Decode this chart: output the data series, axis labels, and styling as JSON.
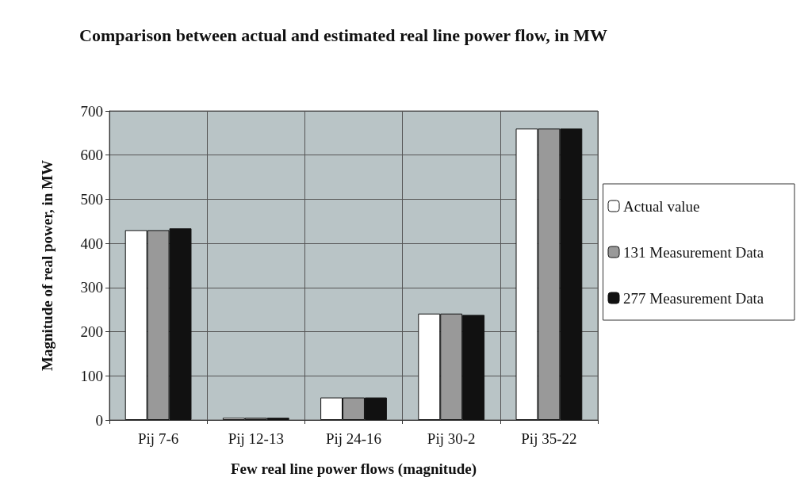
{
  "chart_data": {
    "type": "bar",
    "title": "Comparison between actual and estimated real line power flow, in MW",
    "xlabel": "Few real line power flows (magnitude)",
    "ylabel": "Magnitude of real power, in MW",
    "categories": [
      "Pij 7-6",
      "Pij 12-13",
      "Pij 24-16",
      "Pij 30-2",
      "Pij 35-22"
    ],
    "series": [
      {
        "name": "Actual value",
        "color": "#ffffff",
        "values": [
          430,
          5,
          51,
          241,
          660
        ]
      },
      {
        "name": "131 Measurement Data",
        "color": "#999999",
        "values": [
          430,
          5,
          51,
          241,
          660
        ]
      },
      {
        "name": "277 Measurement Data",
        "color": "#111111",
        "values": [
          434,
          5,
          51,
          238,
          660
        ]
      }
    ],
    "ylim": [
      0,
      700
    ],
    "yticks": [
      0,
      100,
      200,
      300,
      400,
      500,
      600,
      700
    ],
    "grid": true,
    "legend": "right"
  }
}
